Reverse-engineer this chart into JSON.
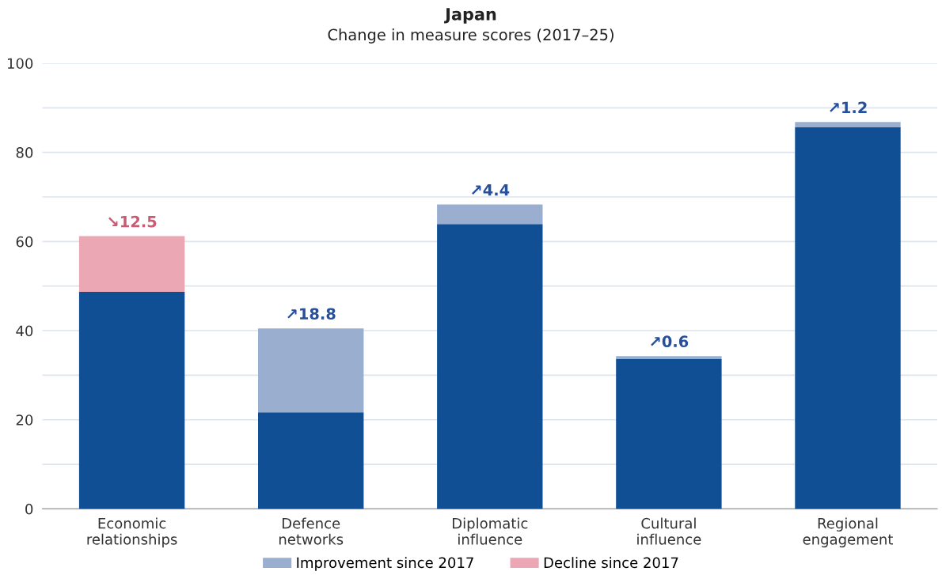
{
  "chart_data": {
    "type": "bar",
    "stacked": true,
    "title": "Japan",
    "subtitle": "Change in measure scores (2017–25)",
    "categories": [
      "Economic\nrelationships",
      "Defence\nnetworks",
      "Diplomatic\ninfluence",
      "Cultural\ninfluence",
      "Regional\nengagement"
    ],
    "series": [
      {
        "color": "#104f94",
        "values": [
          48.7,
          21.7,
          63.9,
          33.7,
          85.6
        ]
      },
      {
        "name": "Improvement since 2017",
        "color": "#9aafd0",
        "values": [
          null,
          18.8,
          4.4,
          0.6,
          1.2
        ],
        "value_labels": [
          null,
          "↗18.8",
          "↗4.4",
          "↗0.6",
          "↗1.2"
        ]
      },
      {
        "name": "Decline since 2017",
        "color": "#eba7b4",
        "values": [
          12.5,
          null,
          null,
          null,
          null
        ],
        "value_labels": [
          "↘12.5",
          null,
          null,
          null,
          null
        ]
      }
    ],
    "ylim": [
      0,
      100
    ],
    "yticks": [
      0,
      {
        "value": 10,
        "label": null
      },
      20,
      {
        "value": 30,
        "label": null
      },
      40,
      {
        "value": 50,
        "label": null
      },
      60,
      {
        "value": 70,
        "label": null
      },
      80,
      {
        "value": 90,
        "label": null
      },
      100
    ],
    "grid": "y",
    "legend": "bottom"
  }
}
